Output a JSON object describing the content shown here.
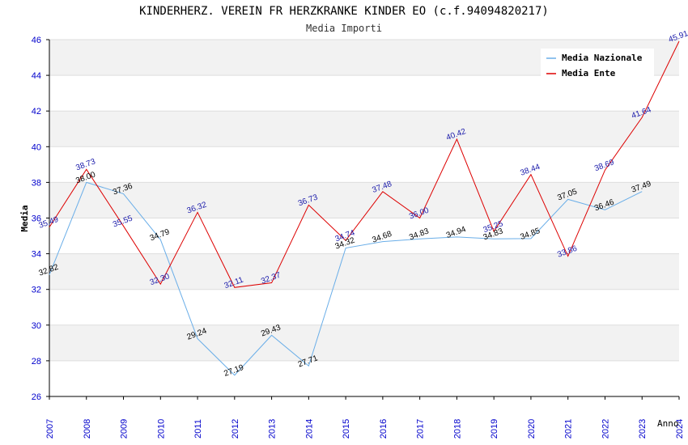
{
  "chart_data": {
    "type": "line",
    "title": "KINDERHERZ. VEREIN FR HERZKRANKE KINDER EO (c.f.94094820217)",
    "subtitle": "Media Importi",
    "ylabel": "Media",
    "xlabel": "Anno",
    "ylim": [
      26,
      46
    ],
    "yticks": [
      26,
      28,
      30,
      32,
      34,
      36,
      38,
      40,
      42,
      44,
      46
    ],
    "x": [
      "2007",
      "2008",
      "2009",
      "2010",
      "2011",
      "2012",
      "2013",
      "2014",
      "2015",
      "2016",
      "2017",
      "2018",
      "2019",
      "2020",
      "2021",
      "2022",
      "2023",
      "2024"
    ],
    "grid": true,
    "legend_position": "top-right",
    "series": [
      {
        "name": "Media Nazionale",
        "color": "#6aaee8",
        "label_color": "#000000",
        "values": [
          32.82,
          38.0,
          37.36,
          34.79,
          29.24,
          27.19,
          29.43,
          27.71,
          34.32,
          34.68,
          34.83,
          34.94,
          34.83,
          34.85,
          37.05,
          36.46,
          37.49,
          null
        ]
      },
      {
        "name": "Media Ente",
        "color": "#dd0000",
        "label_color": "#1a1aaa",
        "values": [
          35.49,
          38.73,
          35.55,
          32.3,
          36.32,
          32.11,
          32.37,
          36.73,
          34.74,
          37.48,
          36.0,
          40.42,
          35.25,
          38.44,
          33.86,
          38.69,
          41.64,
          45.91
        ]
      }
    ]
  }
}
